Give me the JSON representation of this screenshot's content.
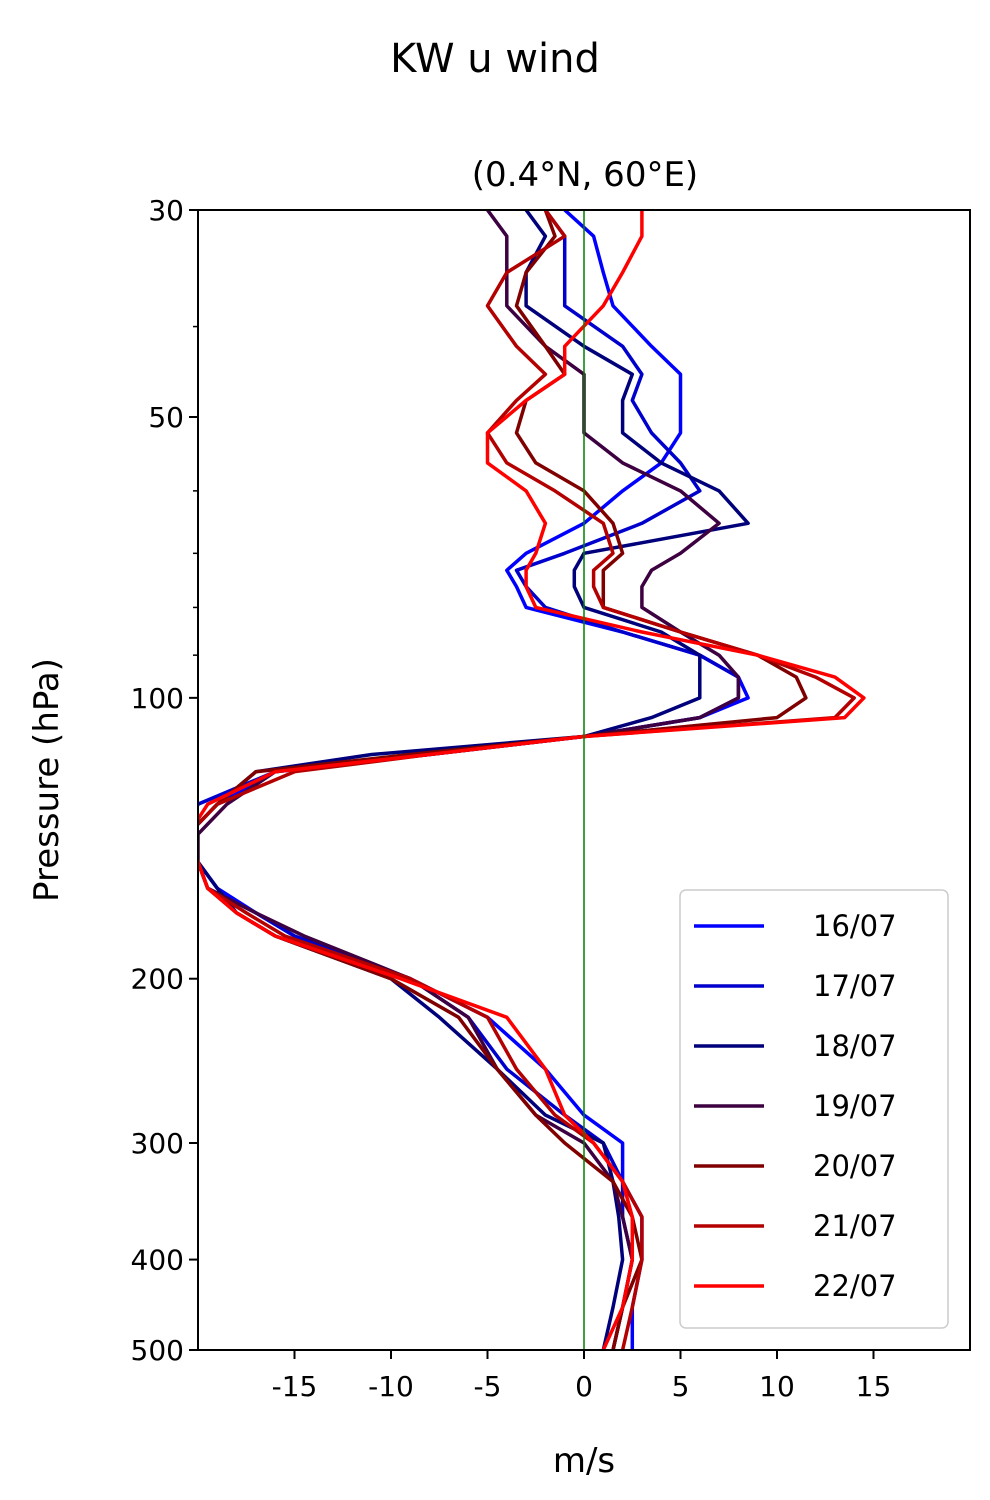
{
  "chart_data": {
    "type": "line",
    "title": "KW u wind",
    "subtitle": "(0.4°N, 60°E)",
    "xlabel": "m/s",
    "ylabel": "Pressure (hPa)",
    "xlim": [
      -20,
      20
    ],
    "ylim": [
      500,
      30
    ],
    "yscale": "log",
    "xticks": [
      -15,
      -10,
      -5,
      0,
      5,
      10,
      15
    ],
    "xtick_labels": [
      "-15",
      "-10",
      "-5",
      "0",
      "5",
      "10",
      "15"
    ],
    "yticks_major": [
      30,
      50,
      100,
      200,
      300,
      400,
      500
    ],
    "ytick_labels": [
      "30",
      "50",
      "100",
      "200",
      "300",
      "400",
      "500"
    ],
    "yticks_minor": [
      40,
      60,
      70,
      80,
      90
    ],
    "grid": false,
    "legend_position": "lower-right",
    "reference_line": {
      "x": 0,
      "color": "#008000"
    },
    "series": [
      {
        "name": "16/07",
        "color": "#0000ff",
        "p": [
          30,
          32,
          35,
          38,
          42,
          45,
          48,
          52,
          56,
          60,
          65,
          70,
          73,
          76,
          80,
          85,
          90,
          95,
          100,
          105,
          110,
          115,
          120,
          130,
          140,
          150,
          160,
          170,
          180,
          200,
          220,
          250,
          280,
          300,
          330,
          360,
          400,
          450,
          500
        ],
        "u": [
          -1,
          0.5,
          1,
          1.5,
          3.5,
          5,
          5,
          5,
          4,
          2,
          0,
          -3,
          -4,
          -3.5,
          -3,
          2,
          6,
          8,
          8.5,
          6,
          0,
          -8,
          -16,
          -19,
          -20.5,
          -20,
          -19,
          -17,
          -15,
          -9,
          -5,
          -2,
          0,
          2,
          2,
          3,
          3,
          2.5,
          2.5
        ]
      },
      {
        "name": "17/07",
        "color": "#0000cc",
        "p": [
          30,
          32,
          35,
          38,
          42,
          45,
          48,
          52,
          56,
          60,
          65,
          70,
          73,
          76,
          80,
          85,
          90,
          95,
          100,
          105,
          110,
          115,
          120,
          130,
          140,
          150,
          160,
          170,
          180,
          200,
          220,
          250,
          280,
          300,
          330,
          360,
          400,
          450,
          500
        ],
        "u": [
          -2,
          -1,
          -1,
          -1,
          2,
          3,
          2.5,
          3.5,
          5,
          6,
          3,
          -1,
          -3.5,
          -3,
          -2,
          2,
          6,
          8,
          8,
          6,
          0,
          -8,
          -16,
          -20,
          -20.5,
          -20,
          -19.5,
          -17,
          -15,
          -9,
          -6,
          -4,
          -1,
          1,
          2,
          2,
          2.5,
          2,
          1.5
        ]
      },
      {
        "name": "18/07",
        "color": "#00007a",
        "p": [
          30,
          32,
          35,
          38,
          42,
          45,
          48,
          52,
          56,
          60,
          65,
          70,
          73,
          76,
          80,
          85,
          90,
          95,
          100,
          105,
          110,
          115,
          120,
          130,
          140,
          150,
          160,
          170,
          180,
          200,
          220,
          250,
          280,
          300,
          330,
          360,
          400,
          450,
          500
        ],
        "u": [
          -3,
          -2,
          -3,
          -3,
          0,
          2.5,
          2,
          2,
          4,
          7,
          8.5,
          0,
          -0.5,
          -0.5,
          0,
          4,
          6,
          6,
          6,
          3.5,
          0,
          -11,
          -17,
          -19,
          -20.5,
          -20,
          -19,
          -18,
          -16,
          -10,
          -7.5,
          -4.5,
          -2,
          1,
          1.5,
          1.8,
          2,
          1.5,
          1
        ]
      },
      {
        "name": "19/07",
        "color": "#3d0040",
        "p": [
          30,
          32,
          35,
          38,
          42,
          45,
          48,
          52,
          56,
          60,
          65,
          70,
          73,
          76,
          80,
          85,
          90,
          95,
          100,
          105,
          110,
          115,
          120,
          130,
          140,
          150,
          160,
          170,
          180,
          200,
          220,
          250,
          280,
          300,
          330,
          360,
          400,
          450,
          500
        ],
        "u": [
          -5,
          -4,
          -4,
          -4,
          -2,
          0,
          0,
          0,
          2,
          5,
          7,
          5,
          3.5,
          3,
          3,
          5,
          7,
          8,
          8,
          6,
          0,
          -9,
          -16,
          -18.5,
          -20,
          -20,
          -19.5,
          -17,
          -14.5,
          -9,
          -6,
          -4.5,
          -2.5,
          0,
          1.5,
          2,
          2.5,
          2,
          1.5
        ]
      },
      {
        "name": "20/07",
        "color": "#800000",
        "p": [
          30,
          32,
          35,
          38,
          42,
          45,
          48,
          52,
          56,
          60,
          65,
          70,
          73,
          76,
          80,
          85,
          90,
          95,
          100,
          105,
          110,
          115,
          120,
          130,
          140,
          150,
          160,
          170,
          180,
          200,
          220,
          250,
          280,
          300,
          330,
          360,
          400,
          450,
          500
        ],
        "u": [
          -2,
          -1.5,
          -3,
          -3.5,
          -2,
          -1,
          -3,
          -3.5,
          -2.5,
          0,
          1.5,
          2,
          1,
          1,
          1,
          5,
          9,
          11,
          11.5,
          10,
          0,
          -9,
          -17,
          -19,
          -20.5,
          -20,
          -19.5,
          -18,
          -16,
          -10,
          -6.5,
          -4.5,
          -2.5,
          -1,
          1.5,
          2.5,
          3,
          2,
          1.5
        ]
      },
      {
        "name": "21/07",
        "color": "#b30000",
        "p": [
          30,
          32,
          35,
          38,
          42,
          45,
          48,
          52,
          56,
          60,
          65,
          70,
          73,
          76,
          80,
          85,
          90,
          95,
          100,
          105,
          110,
          115,
          120,
          130,
          140,
          150,
          160,
          170,
          180,
          200,
          220,
          250,
          280,
          300,
          330,
          360,
          400,
          450,
          500
        ],
        "u": [
          -2,
          -1,
          -4,
          -5,
          -3.5,
          -2,
          -3.5,
          -5,
          -4,
          -1.5,
          1,
          1.5,
          0.5,
          0.5,
          1,
          5,
          9,
          12,
          14,
          13,
          0,
          -8,
          -15,
          -19,
          -20.5,
          -20,
          -19.5,
          -17.5,
          -15.5,
          -9,
          -5,
          -3.5,
          -1.5,
          0.5,
          2,
          3,
          3,
          2.5,
          2
        ]
      },
      {
        "name": "22/07",
        "color": "#ff0000",
        "p": [
          30,
          32,
          35,
          38,
          42,
          45,
          48,
          52,
          56,
          60,
          65,
          70,
          73,
          76,
          80,
          85,
          90,
          95,
          100,
          105,
          110,
          115,
          120,
          130,
          140,
          150,
          160,
          170,
          180,
          200,
          220,
          250,
          280,
          300,
          330,
          360,
          400,
          450,
          500
        ],
        "u": [
          3,
          3,
          2,
          1,
          -1,
          -1,
          -3,
          -5,
          -5,
          -3,
          -2,
          -2.5,
          -3,
          -3,
          -2.5,
          3,
          9,
          13,
          14.5,
          13.5,
          0,
          -8,
          -16,
          -19.5,
          -20.5,
          -20,
          -19.5,
          -18,
          -16,
          -9.5,
          -4,
          -2,
          -1,
          0.5,
          2,
          2.5,
          2.5,
          2,
          1
        ]
      }
    ]
  }
}
